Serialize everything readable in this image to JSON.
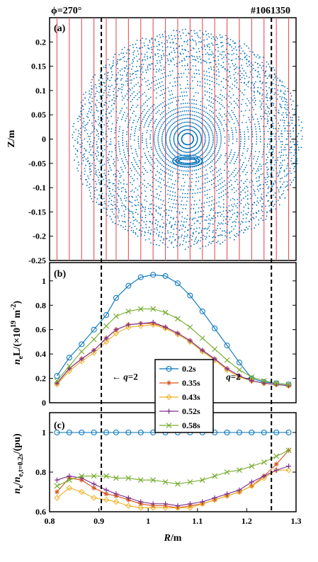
{
  "header": {
    "angle_label": "ϕ=270°",
    "shot_label": "#1061350"
  },
  "colors": {
    "blue": "#0072BD",
    "orange": "#D95319",
    "yellow": "#EDB120",
    "purple": "#7E2F8E",
    "green": "#77AC30",
    "chord": "#E8505B"
  },
  "chart_data": [
    {
      "type": "scatter",
      "panel": "(a)",
      "ylabel": "Z/m",
      "xlim": [
        0.8,
        1.3
      ],
      "ylim": [
        -0.25,
        0.25
      ],
      "yticks": [
        -0.25,
        -0.2,
        -0.15,
        -0.1,
        -0.05,
        0,
        0.05,
        0.1,
        0.15,
        0.2
      ],
      "description_points": "Poincaré puncture plot of magnetic field lines",
      "chords_R": [
        0.815,
        0.84,
        0.865,
        0.89,
        0.915,
        0.935,
        0.96,
        0.985,
        1.01,
        1.035,
        1.06,
        1.085,
        1.11,
        1.135,
        1.16,
        1.185,
        1.21,
        1.235,
        1.26,
        1.285
      ],
      "axis_center": [
        1.08,
        0.0
      ],
      "island_center": [
        1.08,
        -0.045
      ]
    },
    {
      "type": "line",
      "panel": "(b)",
      "ylabel": "n_e L/(×10^19 m^-2)",
      "xlim": [
        0.8,
        1.3
      ],
      "ylim": [
        0,
        1.15
      ],
      "yticks": [
        0,
        0.2,
        0.4,
        0.6,
        0.8,
        1
      ],
      "x": [
        0.815,
        0.84,
        0.865,
        0.89,
        0.915,
        0.935,
        0.96,
        0.985,
        1.01,
        1.035,
        1.06,
        1.085,
        1.11,
        1.135,
        1.16,
        1.185,
        1.21,
        1.235,
        1.26,
        1.285
      ],
      "series": [
        {
          "name": "0.2s",
          "color": "blue",
          "marker": "circle",
          "values": [
            0.22,
            0.37,
            0.48,
            0.6,
            0.72,
            0.86,
            0.96,
            1.03,
            1.05,
            1.04,
            0.98,
            0.88,
            0.75,
            0.61,
            0.47,
            0.33,
            0.2,
            0.17,
            0.16,
            0.15
          ]
        },
        {
          "name": "0.35s",
          "color": "orange",
          "marker": "star",
          "values": [
            0.16,
            0.28,
            0.36,
            0.43,
            0.53,
            0.6,
            0.64,
            0.65,
            0.65,
            0.62,
            0.57,
            0.51,
            0.43,
            0.36,
            0.28,
            0.22,
            0.18,
            0.16,
            0.15,
            0.14
          ]
        },
        {
          "name": "0.43s",
          "color": "yellow",
          "marker": "diamond",
          "values": [
            0.15,
            0.26,
            0.34,
            0.41,
            0.5,
            0.57,
            0.62,
            0.63,
            0.64,
            0.61,
            0.56,
            0.5,
            0.42,
            0.35,
            0.27,
            0.21,
            0.18,
            0.16,
            0.15,
            0.14
          ]
        },
        {
          "name": "0.52s",
          "color": "purple",
          "marker": "plus",
          "values": [
            0.16,
            0.28,
            0.36,
            0.43,
            0.53,
            0.6,
            0.64,
            0.65,
            0.66,
            0.62,
            0.57,
            0.51,
            0.43,
            0.36,
            0.28,
            0.22,
            0.18,
            0.16,
            0.15,
            0.14
          ]
        },
        {
          "name": "0.58s",
          "color": "green",
          "marker": "x",
          "values": [
            0.18,
            0.3,
            0.42,
            0.52,
            0.63,
            0.71,
            0.75,
            0.77,
            0.77,
            0.74,
            0.69,
            0.62,
            0.53,
            0.44,
            0.35,
            0.27,
            0.21,
            0.18,
            0.16,
            0.15
          ]
        }
      ],
      "annotations": [
        {
          "text_pre": "← ",
          "q": "q",
          "text_post": "=2",
          "x": 0.915,
          "y": 0.19
        },
        {
          "text_pre": "",
          "q": "q",
          "text_post": "=2 →",
          "x": 1.23,
          "y": 0.19
        }
      ]
    },
    {
      "type": "line",
      "panel": "(c)",
      "ylabel": "n_e/n_e,t=0.2s/(pu)",
      "xlabel": "R/m",
      "xlim": [
        0.8,
        1.3
      ],
      "ylim": [
        0.6,
        1.1
      ],
      "yticks": [
        0.6,
        0.8,
        1
      ],
      "xticks": [
        0.8,
        0.9,
        1,
        1.1,
        1.2,
        1.3
      ],
      "x": [
        0.815,
        0.84,
        0.865,
        0.89,
        0.915,
        0.935,
        0.96,
        0.985,
        1.01,
        1.035,
        1.06,
        1.085,
        1.11,
        1.135,
        1.16,
        1.185,
        1.21,
        1.235,
        1.26,
        1.285
      ],
      "series": [
        {
          "name": "0.2s",
          "color": "blue",
          "marker": "circle",
          "values": [
            1,
            1,
            1,
            1,
            1,
            1,
            1,
            1,
            1,
            1,
            1,
            1,
            1,
            1,
            1,
            1,
            1,
            1,
            1,
            1
          ]
        },
        {
          "name": "0.35s",
          "color": "orange",
          "marker": "star",
          "values": [
            0.7,
            0.77,
            0.76,
            0.72,
            0.69,
            0.68,
            0.66,
            0.64,
            0.63,
            0.63,
            0.62,
            0.63,
            0.64,
            0.66,
            0.68,
            0.7,
            0.73,
            0.78,
            0.84,
            0.91
          ]
        },
        {
          "name": "0.43s",
          "color": "yellow",
          "marker": "diamond",
          "values": [
            0.67,
            0.72,
            0.7,
            0.67,
            0.66,
            0.65,
            0.63,
            0.62,
            0.62,
            0.62,
            0.62,
            0.62,
            0.64,
            0.66,
            0.68,
            0.7,
            0.73,
            0.77,
            0.81,
            0.81
          ]
        },
        {
          "name": "0.52s",
          "color": "purple",
          "marker": "plus",
          "values": [
            0.76,
            0.78,
            0.77,
            0.74,
            0.71,
            0.69,
            0.67,
            0.65,
            0.64,
            0.64,
            0.63,
            0.64,
            0.65,
            0.67,
            0.69,
            0.71,
            0.75,
            0.78,
            0.81,
            0.83
          ]
        },
        {
          "name": "0.58s",
          "color": "green",
          "marker": "x",
          "values": [
            0.73,
            0.76,
            0.78,
            0.78,
            0.78,
            0.77,
            0.77,
            0.76,
            0.76,
            0.75,
            0.74,
            0.75,
            0.76,
            0.78,
            0.8,
            0.81,
            0.83,
            0.85,
            0.88,
            0.91
          ]
        }
      ]
    }
  ],
  "q2_lines_R": [
    0.905,
    1.25
  ]
}
